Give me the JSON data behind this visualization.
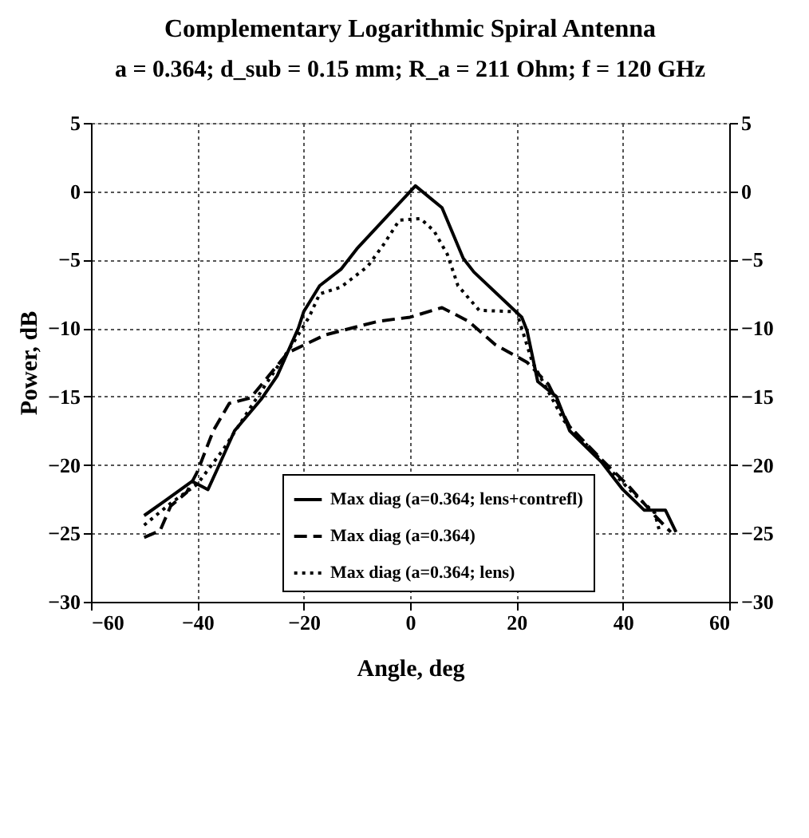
{
  "chart_data": {
    "type": "line",
    "title": "Complementary Logarithmic Spiral Antenna",
    "subtitle": "a = 0.364;  d_sub = 0.15 mm;   R_a = 211 Ohm;  f = 120 GHz",
    "xlabel": "Angle, deg",
    "ylabel": "Power, dB",
    "xlim": [
      -60,
      60
    ],
    "xticks": [
      -60,
      -40,
      -20,
      0,
      20,
      40,
      60
    ],
    "ylim": [
      -30,
      5
    ],
    "yticks": [
      -30,
      -25,
      -20,
      -15,
      -10,
      -5,
      0,
      5
    ],
    "y2lim": [
      -30,
      5
    ],
    "y2ticks": [
      -30,
      -25,
      -20,
      -15,
      -10,
      -5,
      0,
      5
    ],
    "grid": true,
    "legend": "bottom",
    "marker": "none",
    "series": [
      {
        "name": "Max diag (a=0.364; lens+contrefl)",
        "color": "#000000",
        "line_style": "solid",
        "x": [
          -50,
          -46,
          -41,
          -38,
          -36,
          -33,
          -28,
          -25,
          -21,
          -20,
          -17,
          -13,
          -10,
          1,
          6,
          10,
          12,
          21,
          22,
          24,
          27.5,
          30,
          36,
          40,
          44,
          48,
          50
        ],
        "values": [
          -23.7,
          -22.6,
          -21.2,
          -21.8,
          -20.1,
          -17.5,
          -15.2,
          -13.5,
          -10,
          -8.8,
          -6.9,
          -5.7,
          -4.2,
          0.4,
          -1.2,
          -4.9,
          -5.9,
          -9.2,
          -10.2,
          -13.9,
          -15,
          -17.5,
          -19.8,
          -21.8,
          -23.3,
          -23.3,
          -24.9
        ]
      },
      {
        "name": "Max diag (a=0.364)",
        "color": "#000000",
        "line_style": "dashed",
        "x": [
          -50,
          -47,
          -45,
          -42,
          -40,
          -37,
          -34,
          -30,
          -23,
          -16,
          -6,
          0,
          6,
          11,
          16,
          22,
          26,
          30,
          36,
          41,
          46,
          49
        ],
        "values": [
          -25.3,
          -24.8,
          -23,
          -22,
          -20.5,
          -17.5,
          -15.5,
          -15.1,
          -11.8,
          -10.5,
          -9.5,
          -9.2,
          -8.5,
          -9.5,
          -11.2,
          -12.5,
          -14.1,
          -17.2,
          -19.6,
          -21.5,
          -23.7,
          -24.9
        ]
      },
      {
        "name": "Max diag (a=0.364; lens)",
        "color": "#000000",
        "line_style": "dotted",
        "x": [
          -50,
          -45,
          -40,
          -35,
          -30,
          -22,
          -19,
          -17,
          -13,
          -8,
          -5,
          -2,
          2,
          4.5,
          7,
          9,
          13,
          20,
          23,
          29,
          37,
          42,
          46,
          47
        ],
        "values": [
          -24.4,
          -22.8,
          -21.4,
          -18.8,
          -15.8,
          -11.1,
          -9.2,
          -7.5,
          -7,
          -5.5,
          -3.9,
          -2.1,
          -2,
          -2.9,
          -4.6,
          -6.9,
          -8.7,
          -8.8,
          -12.5,
          -16.8,
          -20.1,
          -22.1,
          -23.5,
          -25
        ]
      }
    ]
  }
}
